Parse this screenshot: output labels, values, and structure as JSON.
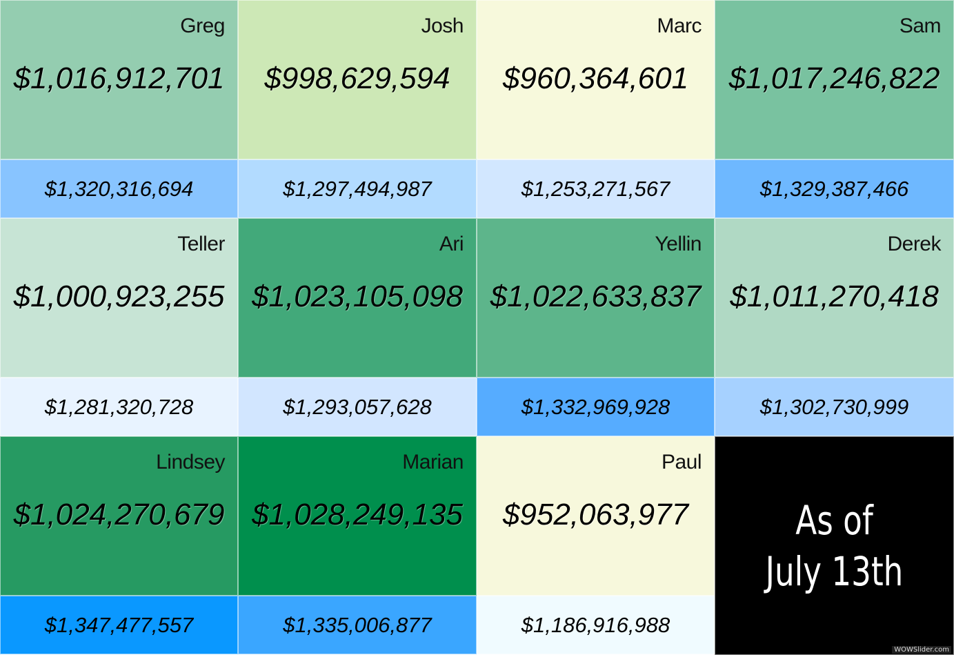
{
  "people": [
    {
      "name": "Greg",
      "main": "$1,016,912,701",
      "sub": "$1,320,316,694",
      "main_color": "#94cdb0",
      "sub_color": "#88c4ff"
    },
    {
      "name": "Josh",
      "main": "$998,629,594",
      "sub": "$1,297,494,987",
      "main_color": "#cde8b6",
      "sub_color": "#b2dbff"
    },
    {
      "name": "Marc",
      "main": "$960,364,601",
      "sub": "$1,253,271,567",
      "main_color": "#f7f9dc",
      "sub_color": "#d2e7ff"
    },
    {
      "name": "Sam",
      "main": "$1,017,246,822",
      "sub": "$1,329,387,466",
      "main_color": "#79c2a0",
      "sub_color": "#6eb8ff"
    },
    {
      "name": "Teller",
      "main": "$1,000,923,255",
      "sub": "$1,281,320,728",
      "main_color": "#c7e4d5",
      "sub_color": "#e8f3ff"
    },
    {
      "name": "Ari",
      "main": "$1,023,105,098",
      "sub": "$1,293,057,628",
      "main_color": "#42a97a",
      "sub_color": "#d2e6ff"
    },
    {
      "name": "Yellin",
      "main": "$1,022,633,837",
      "sub": "$1,332,969,928",
      "main_color": "#5db58b",
      "sub_color": "#56acff"
    },
    {
      "name": "Derek",
      "main": "$1,011,270,418",
      "sub": "$1,302,730,999",
      "main_color": "#b0d9c4",
      "sub_color": "#a6d1ff"
    },
    {
      "name": "Lindsey",
      "main": "$1,024,270,679",
      "sub": "$1,347,477,557",
      "main_color": "#269a62",
      "sub_color": "#0a98ff"
    },
    {
      "name": "Marian",
      "main": "$1,028,249,135",
      "sub": "$1,335,006,877",
      "main_color": "#008f4d",
      "sub_color": "#3aa6ff"
    },
    {
      "name": "Paul",
      "main": "$952,063,977",
      "sub": "$1,186,916,988",
      "main_color": "#f7f8dc",
      "sub_color": "#f0fbff"
    }
  ],
  "as_of": {
    "line1": "As of",
    "line2": "July 13th",
    "bg_color": "#000000"
  },
  "watermark": "WOWSlider.com"
}
